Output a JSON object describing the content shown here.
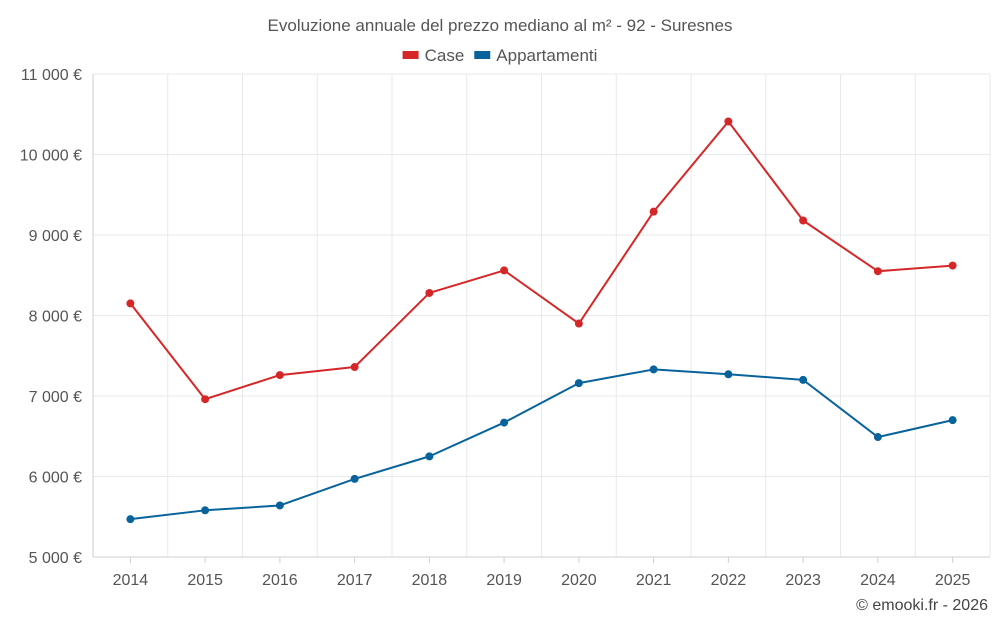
{
  "chart_data": {
    "type": "line",
    "title": "Evoluzione annuale del prezzo mediano al m² - 92 - Suresnes",
    "categories": [
      "2014",
      "2015",
      "2016",
      "2017",
      "2018",
      "2019",
      "2020",
      "2021",
      "2022",
      "2023",
      "2024",
      "2025"
    ],
    "series": [
      {
        "name": "Case",
        "color": "#d62728",
        "values": [
          8150,
          6960,
          7260,
          7360,
          8280,
          8560,
          7900,
          9290,
          10410,
          9180,
          8550,
          8620
        ]
      },
      {
        "name": "Appartamenti",
        "color": "#08639c",
        "values": [
          5470,
          5580,
          5640,
          5970,
          6250,
          6670,
          7160,
          7330,
          7270,
          7200,
          6490,
          6700
        ]
      }
    ],
    "ylim": [
      5000,
      11000
    ],
    "yticks": [
      {
        "value": 5000,
        "label": "5 000 €"
      },
      {
        "value": 6000,
        "label": "6 000 €"
      },
      {
        "value": 7000,
        "label": "7 000 €"
      },
      {
        "value": 8000,
        "label": "8 000 €"
      },
      {
        "value": 9000,
        "label": "9 000 €"
      },
      {
        "value": 10000,
        "label": "10 000 €"
      },
      {
        "value": 11000,
        "label": "11 000 €"
      }
    ],
    "xlabel": "",
    "ylabel": "",
    "grid": true,
    "legend_position": "top-center"
  },
  "credit": "© emooki.fr - 2026"
}
